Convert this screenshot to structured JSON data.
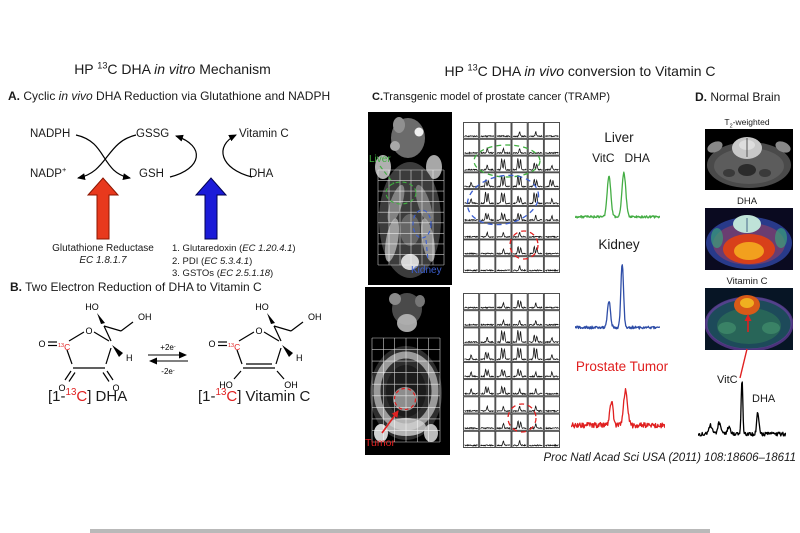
{
  "figure": {
    "left_title": {
      "pre": "HP ",
      "iso": "13",
      "mid": "C DHA ",
      "em": "in vitro",
      "post": " Mechanism"
    },
    "right_title": {
      "pre": "HP ",
      "iso": "13",
      "mid": "C DHA ",
      "em": "in vivo",
      "post": " conversion to Vitamin C"
    },
    "panelA": {
      "label": "A.",
      "title_pre": " Cyclic ",
      "title_em": "in vivo",
      "title_post": " DHA Reduction via Glutathione and NADPH",
      "cycle": {
        "nadph": "NADPH",
        "gssg": "GSSG",
        "vitamin_c": "Vitamin C",
        "nadp": "NADP",
        "nadp_sup": "+",
        "gsh": "GSH",
        "dha": "DHA"
      },
      "red_enzyme": {
        "name": "Glutathione Reductase",
        "ec": "EC 1.8.1.7"
      },
      "blue_enzymes": [
        {
          "pre": "1. Glutaredoxin (",
          "ec": "EC 1.20.4.1",
          "close": ")"
        },
        {
          "pre": "2. PDI (",
          "ec": "EC 5.3.4.1",
          "close": ")"
        },
        {
          "pre": "3. GSTOs  (",
          "ec": "EC 2.5.1.18",
          "close": ")"
        }
      ]
    },
    "panelB": {
      "label": "B.",
      "title": " Two Electron Reduction of DHA to Vitamin C",
      "atoms": {
        "o": "O",
        "ho": "HO",
        "oh": "OH",
        "h": "H",
        "c13_iso": "13",
        "c13_c": "C"
      },
      "equilibrium": {
        "fwd": "+2e",
        "fwd_sup": "-",
        "rev": "-2e",
        "rev_sup": "-"
      },
      "dha_caption": {
        "pre": "[1-",
        "iso": "13",
        "c": "C",
        "post": "] DHA"
      },
      "vitc_caption": {
        "pre": "[1-",
        "iso": "13",
        "c": "C",
        "post": "] Vitamin C"
      }
    },
    "panelC": {
      "label": "C.",
      "title": "Transgenic model of prostate cancer (TRAMP)",
      "mri1_labels": {
        "liver": "Liver",
        "kidney": "Kidney"
      },
      "mri2_labels": {
        "tumor": "Tumor"
      },
      "spectra_titles": {
        "liver": "Liver",
        "kidney": "Kidney",
        "tumor": "Prostate Tumor"
      },
      "peak_labels": {
        "vitc": "VitC",
        "dha": "DHA"
      }
    },
    "panelD": {
      "label": "D.",
      "title": " Normal Brain",
      "img_labels": {
        "t2_pre": "T",
        "t2_sub": "2",
        "t2_post": "-weighted",
        "dha": "DHA",
        "vitc": "Vitamin C"
      },
      "spectrum_labels": {
        "vitc": "VitC",
        "dha": "DHA"
      }
    },
    "citation": "Proc Natl Acad Sci USA (2011) 108:18606–18611"
  },
  "colors": {
    "red_arrow": "#e8391d",
    "blue_arrow": "#1b1bd8",
    "liver_green": "#3fae3f",
    "kidney_blue": "#3c5fd0",
    "spectrum_green": "#44ad44",
    "spectrum_blue": "#2e4da7",
    "tumor_red": "#e02020",
    "spectrum_black": "#000000"
  },
  "spectra_data": {
    "liver": {
      "color": "#44ad44",
      "noise": 0.05,
      "seed": 3,
      "peaks": [
        {
          "x": 0.4,
          "h": 0.9,
          "w": 0.03
        },
        {
          "x": 0.575,
          "h": 0.95,
          "w": 0.032
        }
      ]
    },
    "kidney": {
      "color": "#2e4da7",
      "noise": 0.045,
      "seed": 7,
      "peaks": [
        {
          "x": 0.4,
          "h": 0.42,
          "w": 0.025
        },
        {
          "x": 0.555,
          "h": 1.0,
          "w": 0.022
        }
      ]
    },
    "tumor": {
      "color": "#e02020",
      "noise": 0.13,
      "seed": 11,
      "peaks": [
        {
          "x": 0.43,
          "h": 0.55,
          "w": 0.026
        },
        {
          "x": 0.58,
          "h": 0.85,
          "w": 0.03
        }
      ]
    },
    "brain": {
      "color": "#000000",
      "noise": 0.07,
      "seed": 5,
      "peaks": [
        {
          "x": 0.14,
          "h": 0.16,
          "w": 0.03
        },
        {
          "x": 0.24,
          "h": 0.2,
          "w": 0.025
        },
        {
          "x": 0.35,
          "h": 0.12,
          "w": 0.025
        },
        {
          "x": 0.5,
          "h": 1.0,
          "w": 0.013
        },
        {
          "x": 0.68,
          "h": 0.4,
          "w": 0.018
        }
      ]
    }
  },
  "grids": {
    "grid1": {
      "rows": 9,
      "cols": 6,
      "cells": [
        [
          0,
          0,
          0,
          1,
          1,
          0
        ],
        [
          0,
          1,
          1,
          1,
          0,
          0
        ],
        [
          0,
          1,
          3,
          3,
          2,
          1
        ],
        [
          1,
          2,
          3,
          3,
          2,
          2
        ],
        [
          1,
          3,
          3,
          2,
          3,
          1
        ],
        [
          0,
          2,
          2,
          2,
          1,
          1
        ],
        [
          0,
          1,
          1,
          1,
          0,
          0
        ],
        [
          0,
          0,
          1,
          2,
          2,
          0
        ],
        [
          0,
          0,
          0,
          1,
          0,
          0
        ]
      ]
    },
    "grid2": {
      "rows": 9,
      "cols": 6,
      "cells": [
        [
          0,
          0,
          1,
          2,
          1,
          0
        ],
        [
          0,
          0,
          1,
          1,
          1,
          0
        ],
        [
          0,
          1,
          3,
          3,
          2,
          1
        ],
        [
          1,
          2,
          3,
          3,
          3,
          1
        ],
        [
          1,
          2,
          2,
          2,
          1,
          1
        ],
        [
          1,
          2,
          2,
          1,
          1,
          0
        ],
        [
          0,
          1,
          1,
          1,
          1,
          0
        ],
        [
          0,
          0,
          1,
          2,
          1,
          0
        ],
        [
          0,
          0,
          1,
          1,
          0,
          0
        ]
      ]
    }
  }
}
